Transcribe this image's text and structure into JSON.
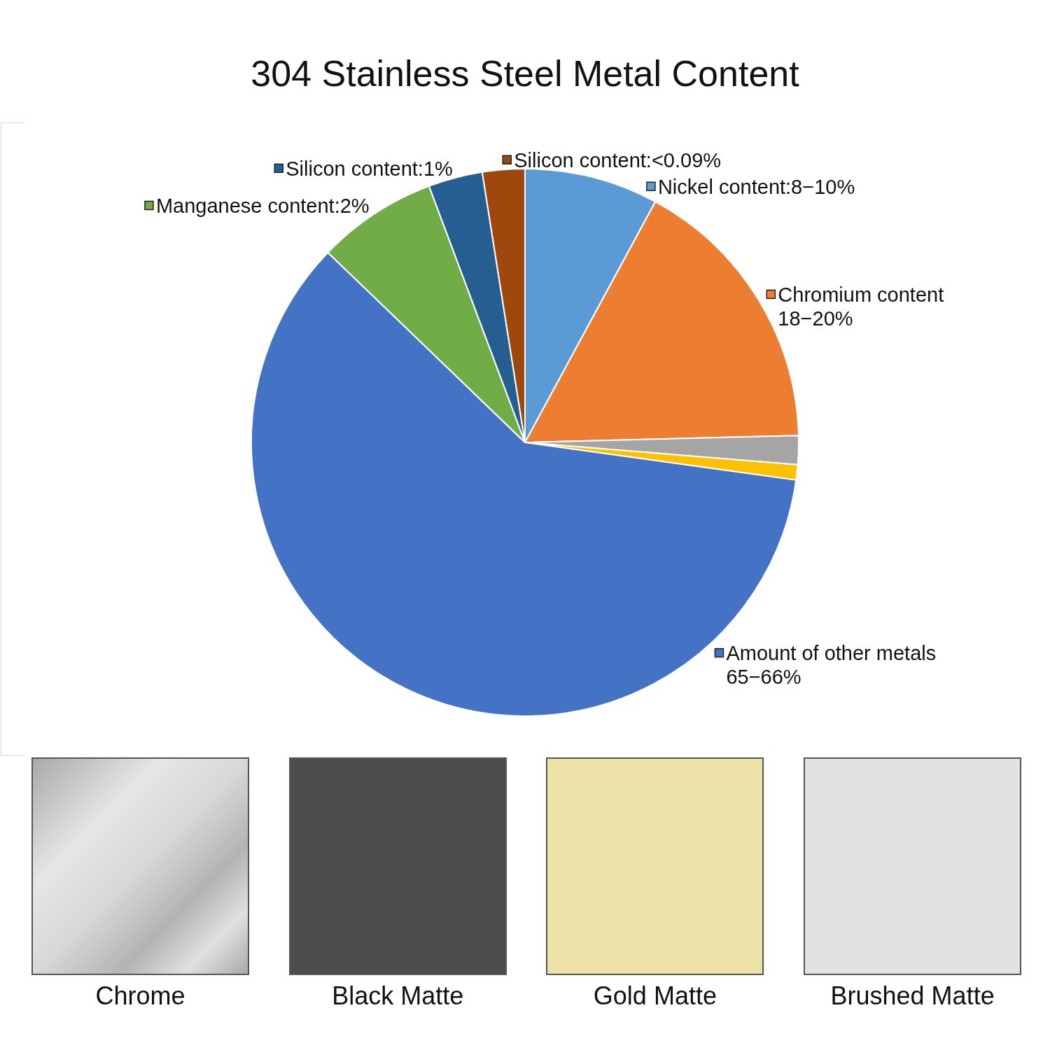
{
  "chart_data": {
    "type": "pie",
    "title": "304 Stainless Steel Metal Content",
    "categories": [
      "Nickel content:8−10%",
      "Chromium content\n18−20%",
      null,
      null,
      "Amount of other metals\n65−66%",
      "Manganese content:2%",
      "Silicon content:1%",
      "Silicon content:<0.09%"
    ],
    "values": [
      7.9,
      16.7,
      1.7,
      0.9,
      60.0,
      7.1,
      3.2,
      2.5
    ],
    "colors": [
      "#5b9bd5",
      "#ed7d31",
      "#a5a5a5",
      "#ffc000",
      "#4472c4",
      "#70ad47",
      "#255e91",
      "#9e480e"
    ],
    "legend": "right",
    "annotations": [
      "Chrome",
      "Black Matte",
      "Gold Matte",
      "Brushed Matte"
    ]
  }
}
